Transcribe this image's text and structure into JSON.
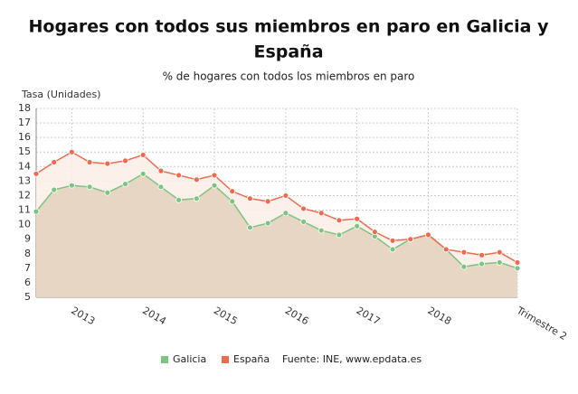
{
  "chart_data": {
    "type": "line",
    "title": "Hogares con todos sus miembros en paro en Galicia y",
    "title_line2": "España",
    "subtitle": "% de hogares con todos los miembros en paro",
    "y_label": "Tasa (Unidades)",
    "source": "Fuente: INE, www.epdata.es",
    "categories": [
      null,
      null,
      "2013",
      null,
      null,
      null,
      "2014",
      null,
      null,
      null,
      "2015",
      null,
      null,
      null,
      "2016",
      null,
      null,
      null,
      "2017",
      null,
      null,
      null,
      "2018",
      null,
      null,
      null,
      null,
      "Trimestre 2"
    ],
    "series": [
      {
        "name": "Galicia",
        "color": "#7cc47f",
        "fill": "#e5d3c0",
        "values": [
          10.9,
          12.4,
          12.7,
          12.6,
          12.2,
          12.8,
          13.5,
          12.6,
          11.7,
          11.8,
          12.7,
          11.6,
          9.8,
          10.1,
          10.8,
          10.2,
          9.6,
          9.3,
          9.9,
          9.2,
          8.3,
          9.0,
          9.3,
          8.3,
          7.1,
          7.3,
          7.4,
          7.0
        ]
      },
      {
        "name": "España",
        "color": "#ef6b4f",
        "fill": "#fbeee8",
        "values": [
          13.5,
          14.3,
          15.0,
          14.3,
          14.2,
          14.4,
          14.8,
          13.7,
          13.4,
          13.1,
          13.4,
          12.3,
          11.8,
          11.6,
          12.0,
          11.1,
          10.8,
          10.3,
          10.4,
          9.5,
          8.9,
          9.0,
          9.3,
          8.3,
          8.1,
          7.9,
          8.1,
          7.4
        ]
      }
    ],
    "ylim": [
      5,
      18
    ],
    "yticks": [
      5,
      6,
      7,
      8,
      9,
      10,
      11,
      12,
      13,
      14,
      15,
      16,
      17,
      18
    ],
    "grid": true
  }
}
